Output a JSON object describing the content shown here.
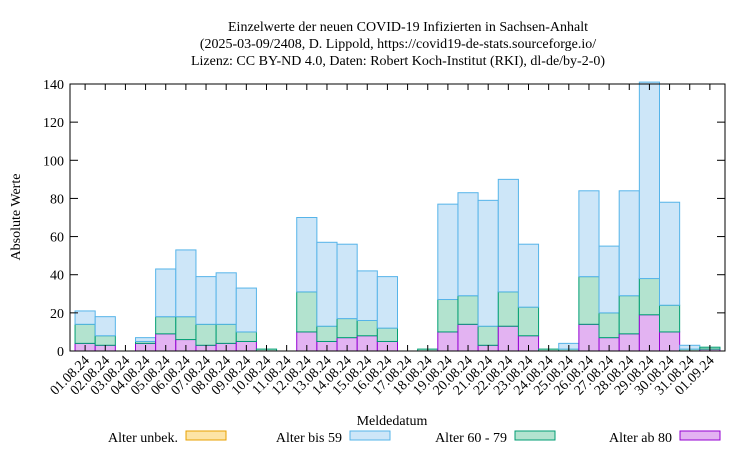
{
  "chart_data": {
    "type": "bar",
    "stacked": true,
    "title_lines": [
      "Einzelwerte der neuen COVID-19 Infizierten in Sachsen-Anhalt",
      "(2025-03-09/2408, D. Lippold, https://covid19-de-stats.sourceforge.io/",
      "Lizenz: CC BY-ND 4.0, Daten: Robert Koch-Institut (RKI), dl-de/by-2-0)"
    ],
    "xlabel": "Meldedatum",
    "ylabel": "Absolute Werte",
    "ylim": [
      0,
      140
    ],
    "yticks": [
      0,
      20,
      40,
      60,
      80,
      100,
      120,
      140
    ],
    "grid": false,
    "legend_position": "bottom",
    "categories": [
      "01.08.24",
      "02.08.24",
      "03.08.24",
      "04.08.24",
      "05.08.24",
      "06.08.24",
      "07.08.24",
      "08.08.24",
      "09.08.24",
      "10.08.24",
      "11.08.24",
      "12.08.24",
      "13.08.24",
      "14.08.24",
      "15.08.24",
      "16.08.24",
      "17.08.24",
      "18.08.24",
      "19.08.24",
      "20.08.24",
      "21.08.24",
      "22.08.24",
      "23.08.24",
      "24.08.24",
      "25.08.24",
      "26.08.24",
      "27.08.24",
      "28.08.24",
      "29.08.24",
      "30.08.24",
      "31.08.24",
      "01.09.24"
    ],
    "series": [
      {
        "name": "Alter unbek.",
        "fill": "#fde4a6",
        "stroke": "#e8a000",
        "values": [
          0,
          0,
          0,
          0,
          0,
          0,
          0,
          0,
          0,
          0,
          0,
          0,
          0,
          0,
          0,
          0,
          0,
          0,
          0,
          0,
          0,
          0,
          0,
          0,
          0,
          0,
          0,
          0,
          0,
          0,
          0,
          0
        ]
      },
      {
        "name": "Alter bis 59",
        "fill": "#cde6f8",
        "stroke": "#56b4e9",
        "values": [
          7,
          10,
          0,
          2,
          25,
          35,
          25,
          27,
          23,
          0,
          0,
          39,
          44,
          39,
          26,
          27,
          0,
          0,
          50,
          54,
          66,
          59,
          33,
          0,
          3,
          45,
          35,
          55,
          103,
          54,
          2,
          0
        ]
      },
      {
        "name": "Alter 60 - 79",
        "fill": "#b3e3cf",
        "stroke": "#009e73",
        "values": [
          10,
          5,
          0,
          1,
          9,
          12,
          11,
          10,
          5,
          1,
          0,
          21,
          8,
          10,
          8,
          7,
          0,
          1,
          17,
          15,
          10,
          18,
          15,
          1,
          1,
          25,
          13,
          20,
          19,
          14,
          1,
          1
        ]
      },
      {
        "name": "Alter ab 80",
        "fill": "#e3b3f2",
        "stroke": "#9400d3",
        "values": [
          4,
          3,
          0,
          4,
          9,
          6,
          3,
          4,
          5,
          0,
          0,
          10,
          5,
          7,
          8,
          5,
          0,
          0,
          10,
          14,
          3,
          13,
          8,
          0,
          0,
          14,
          7,
          9,
          19,
          10,
          0,
          1
        ]
      }
    ]
  }
}
